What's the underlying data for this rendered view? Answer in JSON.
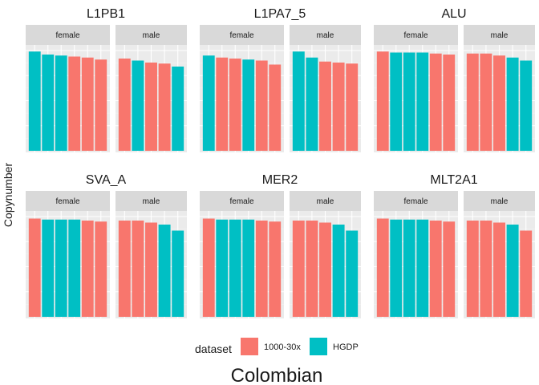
{
  "chart_data": {
    "type": "bar",
    "ylabel": "Copynumber",
    "caption": "Colombian",
    "legend": {
      "title": "dataset",
      "placement": "bottom",
      "entries": [
        {
          "name": "1000-30x",
          "color": "#F8766D"
        },
        {
          "name": "HGDP",
          "color": "#00BFC4"
        }
      ]
    },
    "facet_labels": [
      "female",
      "male"
    ],
    "ylim": [
      0,
      1
    ],
    "grid": true,
    "panels": [
      {
        "title": "L1PB1",
        "female": {
          "values": [
            0.99,
            0.96,
            0.95,
            0.94,
            0.93,
            0.91
          ],
          "datasets": [
            "HGDP",
            "HGDP",
            "HGDP",
            "1000-30x",
            "1000-30x",
            "1000-30x"
          ]
        },
        "male": {
          "values": [
            0.92,
            0.9,
            0.88,
            0.87,
            0.84
          ],
          "datasets": [
            "1000-30x",
            "HGDP",
            "1000-30x",
            "1000-30x",
            "HGDP"
          ]
        }
      },
      {
        "title": "L1PA7_5",
        "female": {
          "values": [
            0.95,
            0.93,
            0.92,
            0.91,
            0.9,
            0.86
          ],
          "datasets": [
            "HGDP",
            "1000-30x",
            "1000-30x",
            "HGDP",
            "1000-30x",
            "1000-30x"
          ]
        },
        "male": {
          "values": [
            0.99,
            0.93,
            0.89,
            0.88,
            0.87
          ],
          "datasets": [
            "HGDP",
            "HGDP",
            "1000-30x",
            "1000-30x",
            "1000-30x"
          ]
        }
      },
      {
        "title": "ALU",
        "female": {
          "values": [
            0.99,
            0.98,
            0.98,
            0.98,
            0.97,
            0.96
          ],
          "datasets": [
            "1000-30x",
            "HGDP",
            "HGDP",
            "HGDP",
            "1000-30x",
            "1000-30x"
          ]
        },
        "male": {
          "values": [
            0.97,
            0.97,
            0.95,
            0.93,
            0.9
          ],
          "datasets": [
            "1000-30x",
            "1000-30x",
            "1000-30x",
            "HGDP",
            "HGDP"
          ]
        }
      },
      {
        "title": "SVA_A",
        "female": {
          "values": [
            0.98,
            0.97,
            0.97,
            0.97,
            0.96,
            0.95
          ],
          "datasets": [
            "1000-30x",
            "HGDP",
            "HGDP",
            "HGDP",
            "1000-30x",
            "1000-30x"
          ]
        },
        "male": {
          "values": [
            0.96,
            0.96,
            0.94,
            0.92,
            0.86
          ],
          "datasets": [
            "1000-30x",
            "1000-30x",
            "1000-30x",
            "HGDP",
            "HGDP"
          ]
        }
      },
      {
        "title": "MER2",
        "female": {
          "values": [
            0.98,
            0.97,
            0.97,
            0.97,
            0.96,
            0.95
          ],
          "datasets": [
            "1000-30x",
            "HGDP",
            "HGDP",
            "HGDP",
            "1000-30x",
            "1000-30x"
          ]
        },
        "male": {
          "values": [
            0.96,
            0.96,
            0.94,
            0.92,
            0.86
          ],
          "datasets": [
            "1000-30x",
            "1000-30x",
            "1000-30x",
            "HGDP",
            "HGDP"
          ]
        }
      },
      {
        "title": "MLT2A1",
        "female": {
          "values": [
            0.98,
            0.97,
            0.97,
            0.97,
            0.96,
            0.95
          ],
          "datasets": [
            "1000-30x",
            "HGDP",
            "HGDP",
            "HGDP",
            "1000-30x",
            "1000-30x"
          ]
        },
        "male": {
          "values": [
            0.96,
            0.96,
            0.94,
            0.92,
            0.86
          ],
          "datasets": [
            "1000-30x",
            "1000-30x",
            "1000-30x",
            "HGDP",
            "1000-30x"
          ]
        }
      }
    ]
  }
}
